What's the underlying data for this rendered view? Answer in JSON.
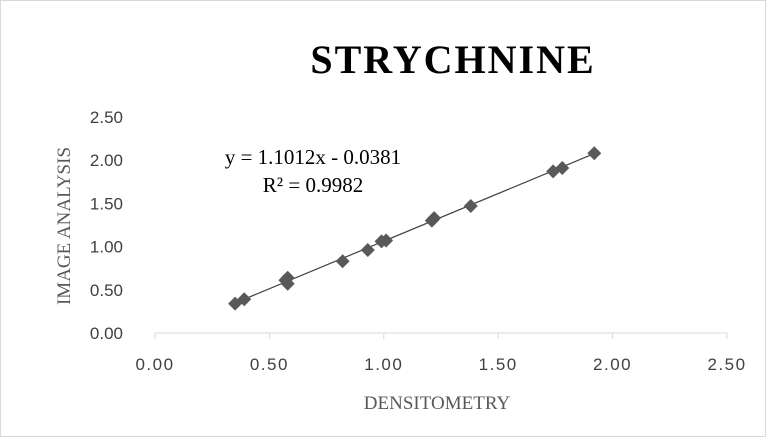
{
  "chart_data": {
    "type": "scatter",
    "title": "STRYCHNINE",
    "xlabel": "DENSITOMETRY",
    "ylabel": "IMAGE ANALYSIS",
    "xlim": [
      0,
      2.5
    ],
    "ylim": [
      0,
      2.5
    ],
    "xticks": [
      "0.00",
      "0.50",
      "1.00",
      "1.50",
      "2.00",
      "2.50"
    ],
    "yticks": [
      "0.00",
      "0.50",
      "1.00",
      "1.50",
      "2.00",
      "2.50"
    ],
    "grid": false,
    "marker": "diamond",
    "marker_color": "#595959",
    "series": [
      {
        "x": [
          0.35,
          0.39,
          0.57,
          0.58,
          0.58,
          0.82,
          0.93,
          0.99,
          1.01,
          1.21,
          1.22,
          1.38,
          1.74,
          1.78,
          1.92
        ],
        "y": [
          0.34,
          0.39,
          0.61,
          0.64,
          0.57,
          0.83,
          0.96,
          1.06,
          1.07,
          1.3,
          1.33,
          1.47,
          1.87,
          1.91,
          2.08
        ]
      }
    ],
    "trendline": {
      "type": "linear",
      "slope": 1.1012,
      "intercept": -0.0381,
      "x_range": [
        0.35,
        1.92
      ],
      "equation": "y = 1.1012x - 0.0381",
      "r_squared": "R² = 0.9982"
    }
  }
}
